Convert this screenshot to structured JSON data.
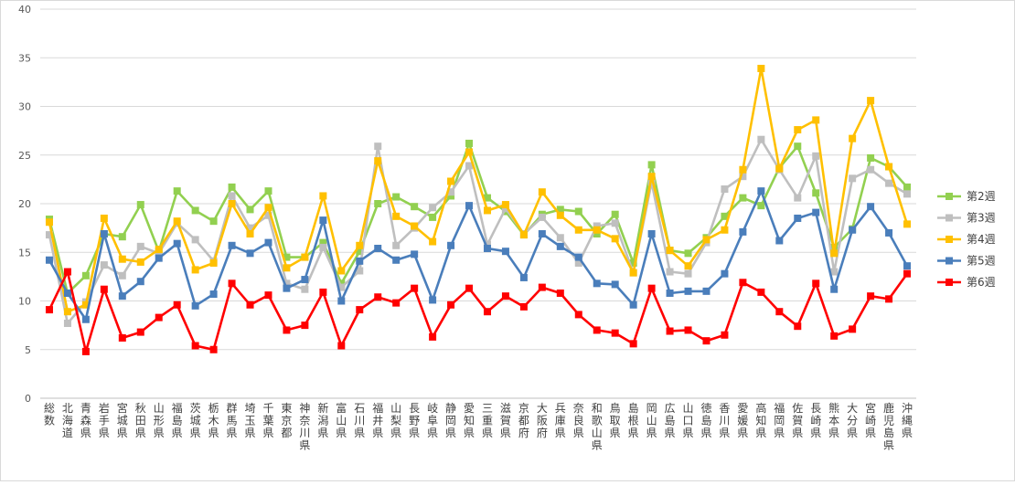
{
  "chart_data": {
    "type": "line",
    "title": "",
    "xlabel": "",
    "ylabel": "",
    "ylim": [
      0,
      40
    ],
    "yticks": [
      0,
      5,
      10,
      15,
      20,
      25,
      30,
      35,
      40
    ],
    "grid": "horizontal",
    "legend_position": "right",
    "categories": [
      "総数",
      "北海道",
      "青森県",
      "岩手県",
      "宮城県",
      "秋田県",
      "山形県",
      "福島県",
      "茨城県",
      "栃木県",
      "群馬県",
      "埼玉県",
      "千葉県",
      "東京都",
      "神奈川県",
      "新潟県",
      "富山県",
      "石川県",
      "福井県",
      "山梨県",
      "長野県",
      "岐阜県",
      "静岡県",
      "愛知県",
      "三重県",
      "滋賀県",
      "京都府",
      "大阪府",
      "兵庫県",
      "奈良県",
      "和歌山県",
      "鳥取県",
      "島根県",
      "岡山県",
      "広島県",
      "山口県",
      "徳島県",
      "香川県",
      "愛媛県",
      "高知県",
      "福岡県",
      "佐賀県",
      "長崎県",
      "熊本県",
      "大分県",
      "宮崎県",
      "鹿児島県",
      "沖縄県"
    ],
    "series": [
      {
        "name": "第2週",
        "color": "#92d050",
        "values": [
          18.4,
          10.8,
          12.6,
          16.9,
          16.6,
          19.9,
          15.1,
          21.3,
          19.3,
          18.2,
          21.7,
          19.4,
          21.3,
          14.5,
          14.5,
          16.0,
          11.8,
          15.1,
          20.0,
          20.7,
          19.7,
          18.6,
          20.8,
          26.2,
          20.6,
          19.2,
          16.8,
          18.9,
          19.4,
          19.2,
          16.9,
          18.9,
          13.9,
          24.0,
          15.2,
          14.9,
          16.5,
          18.7,
          20.6,
          19.8,
          23.7,
          25.9,
          21.1,
          15.5,
          17.4,
          24.7,
          23.8,
          21.7
        ]
      },
      {
        "name": "第3週",
        "color": "#bfbfbf",
        "values": [
          16.8,
          7.7,
          9.9,
          13.7,
          12.6,
          15.6,
          14.9,
          18.0,
          16.3,
          14.1,
          20.8,
          17.5,
          18.8,
          11.8,
          11.2,
          15.5,
          11.4,
          13.1,
          25.9,
          15.7,
          17.5,
          19.6,
          21.2,
          23.9,
          15.8,
          19.5,
          16.9,
          18.6,
          16.5,
          13.9,
          17.7,
          18.0,
          12.9,
          22.2,
          13.0,
          12.8,
          16.0,
          21.5,
          22.8,
          26.6,
          23.5,
          20.6,
          24.9,
          13.0,
          22.6,
          23.5,
          22.1,
          21.0
        ]
      },
      {
        "name": "第4週",
        "color": "#ffc000",
        "values": [
          18.1,
          8.9,
          9.6,
          18.5,
          14.3,
          14.0,
          15.3,
          18.2,
          13.2,
          13.9,
          20.0,
          16.9,
          19.6,
          13.4,
          14.5,
          20.8,
          13.1,
          15.7,
          24.4,
          18.7,
          17.7,
          16.1,
          22.3,
          25.3,
          19.3,
          19.9,
          16.8,
          21.2,
          18.8,
          17.3,
          17.3,
          16.4,
          12.9,
          22.8,
          15.2,
          13.6,
          16.3,
          17.3,
          23.5,
          33.9,
          23.6,
          27.6,
          28.6,
          14.9,
          26.7,
          30.6,
          23.8,
          17.9
        ]
      },
      {
        "name": "第5週",
        "color": "#4a7ebb",
        "values": [
          14.2,
          10.8,
          8.1,
          16.9,
          10.5,
          12.0,
          14.4,
          15.9,
          9.5,
          10.7,
          15.7,
          14.9,
          16.0,
          11.3,
          12.2,
          18.3,
          10.0,
          14.1,
          15.4,
          14.2,
          14.8,
          10.1,
          15.7,
          19.8,
          15.4,
          15.1,
          12.4,
          16.9,
          15.6,
          14.5,
          11.8,
          11.7,
          9.6,
          16.9,
          10.8,
          11.0,
          11.0,
          12.8,
          17.1,
          21.3,
          16.2,
          18.5,
          19.1,
          11.2,
          17.3,
          19.7,
          17.0,
          13.6
        ]
      },
      {
        "name": "第6週",
        "color": "#ff0000",
        "values": [
          9.1,
          13.0,
          4.8,
          11.2,
          6.2,
          6.8,
          8.3,
          9.6,
          5.4,
          5.0,
          11.8,
          9.6,
          10.6,
          7.0,
          7.5,
          10.9,
          5.4,
          9.1,
          10.4,
          9.8,
          11.3,
          6.3,
          9.6,
          11.3,
          8.9,
          10.5,
          9.4,
          11.4,
          10.8,
          8.6,
          7.0,
          6.7,
          5.6,
          11.3,
          6.9,
          7.0,
          5.9,
          6.5,
          11.9,
          10.9,
          8.9,
          7.4,
          11.8,
          6.4,
          7.1,
          10.5,
          10.2,
          12.8
        ]
      }
    ]
  }
}
